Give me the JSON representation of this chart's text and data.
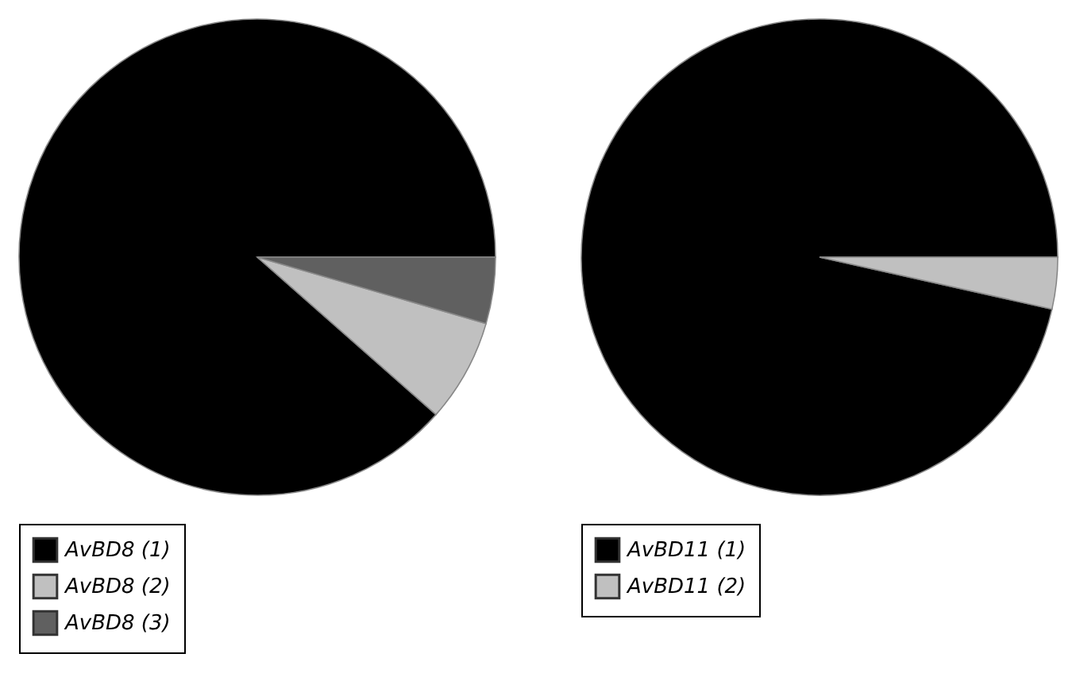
{
  "chart_data": [
    {
      "type": "pie",
      "categories": [
        "AvBD8 (1)",
        "AvBD8 (2)",
        "AvBD8 (3)"
      ],
      "values": [
        88.5,
        7,
        4.5
      ],
      "colors": [
        "#000000",
        "#c0c0c0",
        "#606060"
      ],
      "legend": "bottom"
    },
    {
      "type": "pie",
      "categories": [
        "AvBD11 (1)",
        "AvBD11 (2)"
      ],
      "values": [
        96.5,
        3.5
      ],
      "colors": [
        "#000000",
        "#c0c0c0"
      ],
      "legend": "bottom"
    }
  ]
}
